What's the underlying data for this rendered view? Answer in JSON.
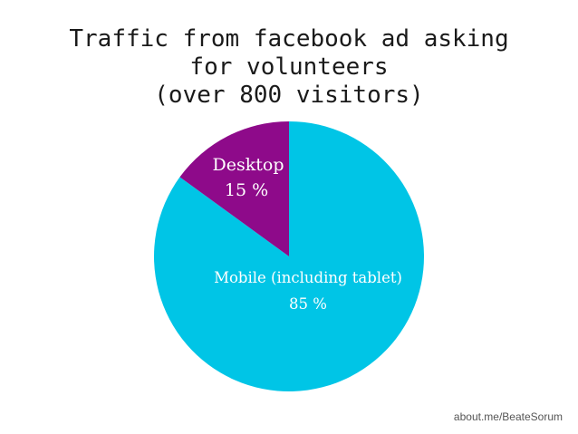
{
  "chart_data": {
    "type": "pie",
    "title": "Traffic from facebook ad asking for volunteers (over 800 visitors)",
    "title_lines": [
      "Traffic from facebook ad asking",
      "for volunteers",
      "(over 800 visitors)"
    ],
    "slices": [
      {
        "name": "Mobile (including tablet)",
        "value": 85,
        "value_label": "85 %",
        "color": "#00c5e6"
      },
      {
        "name": "Desktop",
        "value": 15,
        "value_label": "15 %",
        "color": "#8e0a8a"
      }
    ],
    "start_angle": "12 o'clock",
    "direction": "clockwise",
    "legend": "none"
  },
  "credit": "about.me/BeateSorum"
}
